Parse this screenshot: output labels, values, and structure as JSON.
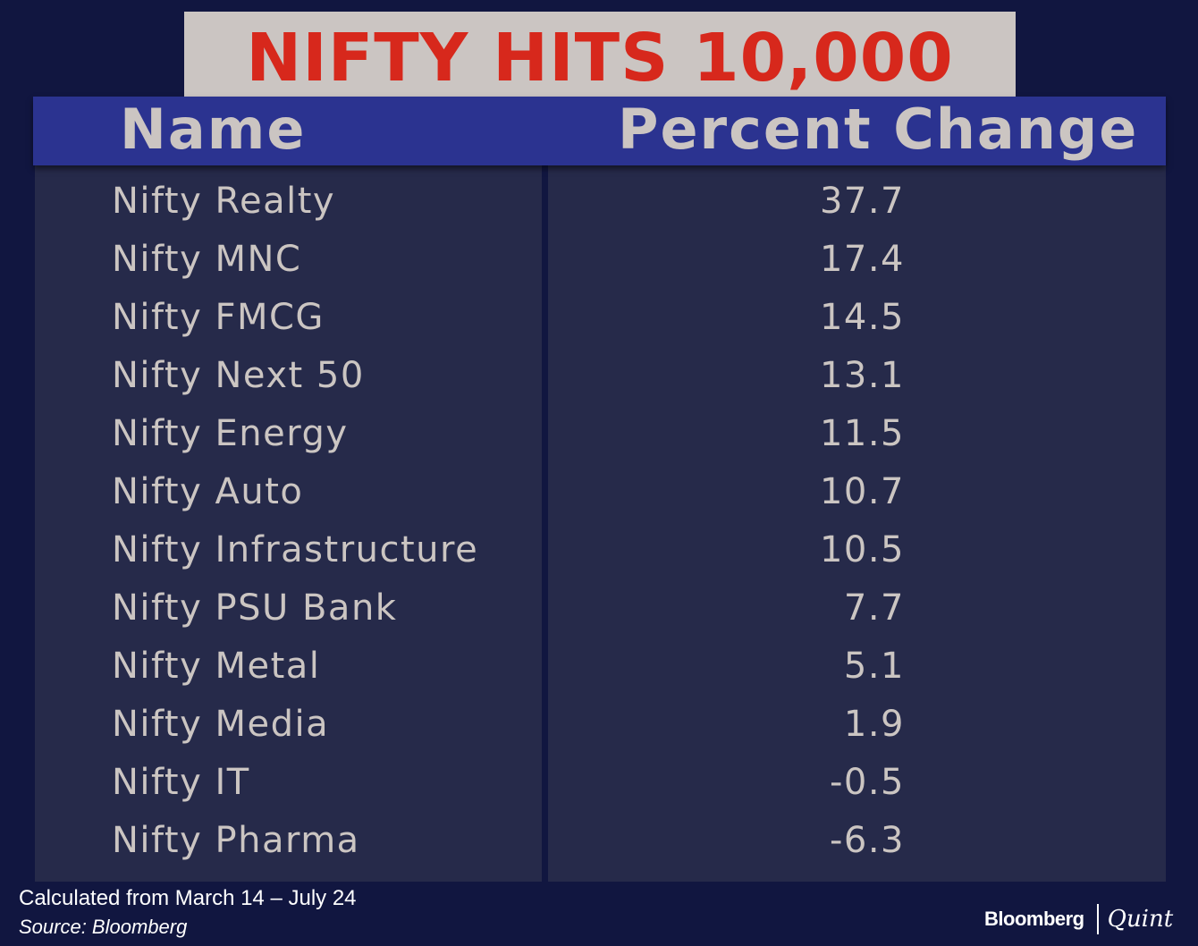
{
  "title": "NIFTY HITS 10,000",
  "colors": {
    "background": "#111640",
    "title_box": "#cbc5c2",
    "title_text": "#d7281c",
    "header_bar": "#2b3390",
    "table_panel": "#262a4a",
    "table_text": "#cbc5c2",
    "footer_text": "#ffffff"
  },
  "chart_data": {
    "type": "table",
    "title": "NIFTY HITS 10,000",
    "columns": [
      "Name",
      "Percent Change"
    ],
    "rows": [
      {
        "name": "Nifty Realty",
        "value": "37.7"
      },
      {
        "name": "Nifty MNC",
        "value": "17.4"
      },
      {
        "name": "Nifty FMCG",
        "value": "14.5"
      },
      {
        "name": "Nifty Next 50",
        "value": "13.1"
      },
      {
        "name": "Nifty Energy",
        "value": "11.5"
      },
      {
        "name": "Nifty Auto",
        "value": "10.7"
      },
      {
        "name": "Nifty Infrastructure",
        "value": "10.5"
      },
      {
        "name": "Nifty PSU Bank",
        "value": "7.7"
      },
      {
        "name": "Nifty Metal",
        "value": "5.1"
      },
      {
        "name": "Nifty Media",
        "value": "1.9"
      },
      {
        "name": "Nifty IT",
        "value": "-0.5"
      },
      {
        "name": "Nifty Pharma",
        "value": "-6.3"
      }
    ]
  },
  "footer": {
    "note": "Calculated from March 14 – July 24",
    "source": "Source: Bloomberg",
    "logo_left": "Bloomberg",
    "logo_right": "Quint"
  }
}
